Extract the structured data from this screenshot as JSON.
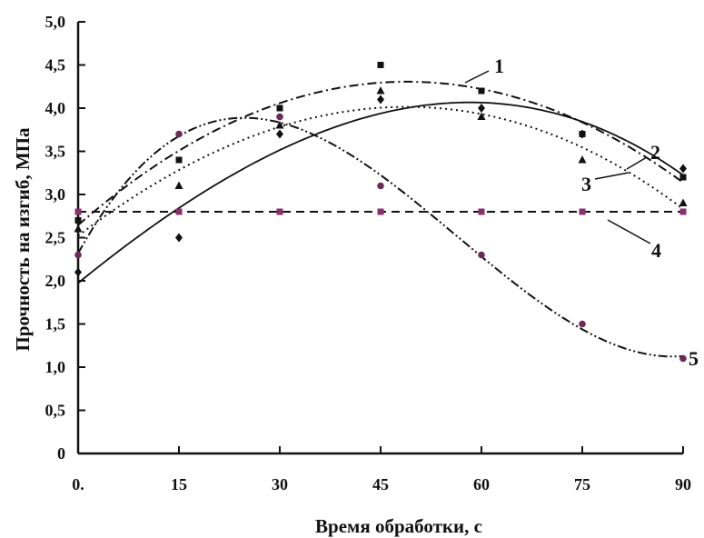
{
  "chart_data": {
    "type": "scatter",
    "xlabel": "Время обработки, с",
    "ylabel": "Прочность на изгиб, МПа",
    "xlim": [
      0,
      90
    ],
    "ylim": [
      0,
      5.0
    ],
    "x_ticks": [
      "0.",
      "15",
      "30",
      "45",
      "60",
      "75",
      "90"
    ],
    "y_ticks": [
      "0",
      "0,5",
      "1,0",
      "1,5",
      "2,0",
      "2,5",
      "3,0",
      "3,5",
      "4,0",
      "4,5",
      "5,0"
    ],
    "grid": false,
    "x": [
      0,
      15,
      30,
      45,
      60,
      75,
      90
    ],
    "series": [
      {
        "name": "1",
        "values": [
          2.7,
          3.4,
          4.0,
          4.5,
          4.2,
          3.7,
          3.2
        ],
        "marker": "square",
        "line": "dash-dot",
        "color": "#111111"
      },
      {
        "name": "2",
        "values": [
          2.1,
          2.5,
          3.7,
          4.1,
          4.0,
          3.7,
          3.3
        ],
        "marker": "diamond",
        "line": "solid",
        "color": "#111111"
      },
      {
        "name": "3",
        "values": [
          2.6,
          3.1,
          3.8,
          4.2,
          3.9,
          3.4,
          2.9
        ],
        "marker": "triangle",
        "line": "dotted",
        "color": "#111111"
      },
      {
        "name": "4",
        "values": [
          2.8,
          2.8,
          2.8,
          2.8,
          2.8,
          2.8,
          2.8
        ],
        "marker": "square",
        "line": "dashed",
        "color": "#8a2f6e"
      },
      {
        "name": "5",
        "values": [
          2.3,
          3.7,
          3.9,
          3.1,
          2.3,
          1.5,
          1.1
        ],
        "marker": "circle",
        "line": "dash-dot-dot",
        "color": "#111111"
      }
    ]
  }
}
